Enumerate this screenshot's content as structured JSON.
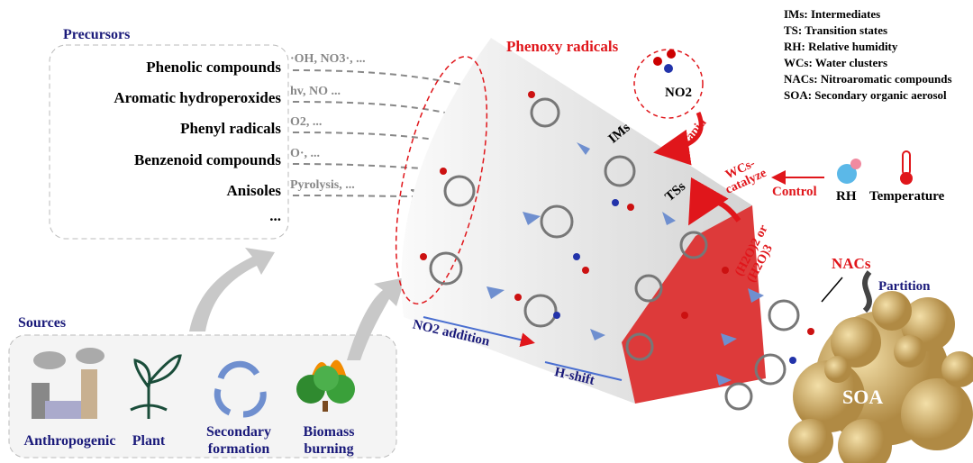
{
  "precursors": {
    "title": "Precursors",
    "items": [
      {
        "label": "Phenolic compounds",
        "reagent": "·OH, NO3·, ..."
      },
      {
        "label": "Aromatic hydroperoxides",
        "reagent": "hv, NO ..."
      },
      {
        "label": "Phenyl radicals",
        "reagent": "O2, ..."
      },
      {
        "label": "Benzenoid compounds",
        "reagent": "O·, ..."
      },
      {
        "label": "Anisoles",
        "reagent": "Pyrolysis, ..."
      }
    ],
    "more": "..."
  },
  "sources": {
    "title": "Sources",
    "items": [
      {
        "label": "Anthropogenic",
        "icon": "factory-icon"
      },
      {
        "label": "Plant",
        "icon": "plant-icon"
      },
      {
        "label": "Secondary formation",
        "icon": "recycle-arrows-icon"
      },
      {
        "label": "Biomass burning",
        "icon": "burning-trees-icon"
      }
    ]
  },
  "legend": [
    "IMs: Intermediates",
    "TS: Transition states",
    "RH: Relative humidity",
    "WCs: Water clusters",
    "NACs: Nitroaromatic compounds",
    "SOA: Secondary organic aerosol"
  ],
  "labels": {
    "phenoxy": "Phenoxy radicals",
    "no2": "NO2",
    "rapid": "Rapid",
    "ims": "IMs",
    "tss": "TSs",
    "wcs": "WCs-catalyze",
    "water": "(H2O)2 or (H2O)3",
    "control": "Control",
    "rh": "RH",
    "temperature": "Temperature",
    "nacs": "NACs",
    "partition": "Partition",
    "soa": "SOA",
    "no2_addition": "NO2 addition",
    "h_shift": "H-shift"
  },
  "colors": {
    "red": "#e0161b",
    "navy": "#1a1a7a",
    "soa": "#c8a460",
    "arrow_blue": "#6f8fcf"
  }
}
